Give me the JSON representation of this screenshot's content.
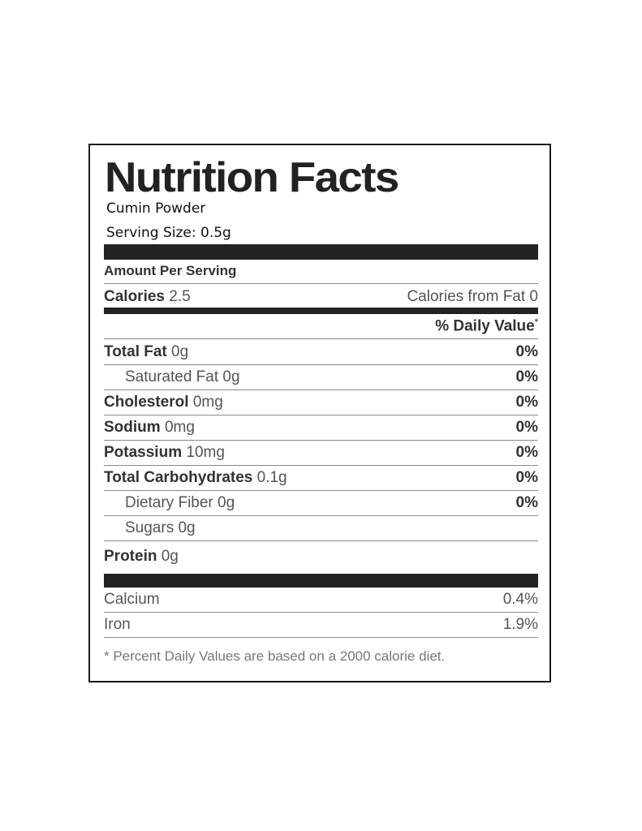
{
  "label": {
    "title": "Nutrition Facts",
    "product": "Cumin Powder",
    "serving_size": "Serving Size: 0.5g",
    "amount_per_serving": "Amount Per Serving",
    "calories_label": "Calories",
    "calories_value": "2.5",
    "calories_from_fat": "Calories from Fat 0",
    "daily_value_header": "% Daily Value",
    "daily_value_mark": "*",
    "nutrients": [
      {
        "name": "Total Fat",
        "amount": "0g",
        "dv": "0%"
      },
      {
        "name": "Saturated Fat",
        "amount": "0g",
        "dv": "0%"
      },
      {
        "name": "Cholesterol",
        "amount": "0mg",
        "dv": "0%"
      },
      {
        "name": "Sodium",
        "amount": "0mg",
        "dv": "0%"
      },
      {
        "name": "Potassium",
        "amount": "10mg",
        "dv": "0%"
      },
      {
        "name": "Total Carbohydrates",
        "amount": "0.1g",
        "dv": "0%"
      },
      {
        "name": "Dietary Fiber",
        "amount": "0g",
        "dv": "0%"
      },
      {
        "name": "Sugars",
        "amount": "0g",
        "dv": ""
      },
      {
        "name": "Protein",
        "amount": "0g",
        "dv": ""
      }
    ],
    "vitamins": [
      {
        "name": "Calcium",
        "value": "0.4%"
      },
      {
        "name": "Iron",
        "value": "1.9%"
      }
    ],
    "footnote": "* Percent Daily Values are based on a 2000 calorie diet."
  }
}
